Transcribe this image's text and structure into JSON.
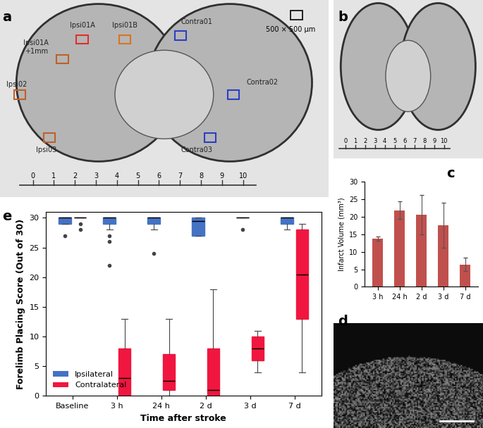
{
  "panel_labels": [
    "a",
    "b",
    "c",
    "d",
    "e"
  ],
  "images": {
    "a": {
      "regions": [
        {
          "label": "Ipsi01A",
          "color": "#e0302a"
        },
        {
          "label": "Ipsi01B",
          "color": "#d9751e"
        },
        {
          "label": "Ipsi01A\n+1mm",
          "color": "#c0602a"
        },
        {
          "label": "Ipsi02",
          "color": "#c0602a"
        },
        {
          "label": "Ipsi03",
          "color": "#c0602a"
        },
        {
          "label": "Contra01",
          "color": "#2b3fc4"
        },
        {
          "label": "Contra02",
          "color": "#2b3fc4"
        },
        {
          "label": "Contra03",
          "color": "#2b3fc4"
        }
      ],
      "scale_label": "500 × 500 μm",
      "ruler_ticks": [
        0,
        1,
        2,
        3,
        4,
        5,
        6,
        7,
        8,
        9,
        10
      ]
    },
    "b": {
      "ruler_ticks": [
        0,
        1,
        2,
        3,
        4,
        5,
        6,
        7,
        8,
        9,
        10
      ]
    }
  },
  "chart_data": [
    {
      "type": "bar",
      "categories": [
        "3 h",
        "24 h",
        "2 d",
        "3 d",
        "7 d"
      ],
      "values": [
        13.8,
        21.9,
        20.6,
        17.6,
        6.4
      ],
      "errors": [
        0.6,
        2.5,
        5.7,
        6.4,
        1.9
      ],
      "color": "#c0504d",
      "y_label": "Infarct Volume (mm³)",
      "ylim": [
        0,
        30
      ],
      "yticks": [
        0,
        5,
        10,
        15,
        20,
        25,
        30
      ]
    },
    {
      "type": "box",
      "categories": [
        "Baseline",
        "3 h",
        "24 h",
        "2 d",
        "3 d",
        "7 d"
      ],
      "x_label": "Time after stroke",
      "y_label": "Forelimb Placing Score (Out of 30)",
      "ylim": [
        0,
        31
      ],
      "yticks": [
        0,
        5,
        10,
        15,
        20,
        25,
        30
      ],
      "legend": "lower left",
      "series": [
        {
          "name": "Ipsilateral",
          "color": "#4472c4",
          "stats": [
            {
              "whislo": 29,
              "q1": 29,
              "med": 30,
              "q3": 30,
              "whishi": 30,
              "fliers": [
                27
              ]
            },
            {
              "whislo": 28,
              "q1": 29,
              "med": 30,
              "q3": 30,
              "whishi": 30,
              "fliers": [
                27,
                26,
                22
              ]
            },
            {
              "whislo": 28,
              "q1": 29,
              "med": 30,
              "q3": 30,
              "whishi": 30,
              "fliers": [
                24
              ]
            },
            {
              "whislo": 27,
              "q1": 27,
              "med": 29.5,
              "q3": 30,
              "whishi": 30,
              "fliers": []
            },
            {
              "whislo": 30,
              "q1": 30,
              "med": 30,
              "q3": 30,
              "whishi": 30,
              "fliers": [
                28
              ]
            },
            {
              "whislo": 28,
              "q1": 29,
              "med": 30,
              "q3": 30,
              "whishi": 30,
              "fliers": []
            }
          ]
        },
        {
          "name": "Contralateral",
          "color": "#f0163f",
          "stats": [
            {
              "whislo": 30,
              "q1": 30,
              "med": 30,
              "q3": 30,
              "whishi": 30,
              "fliers": [
                29,
                28
              ]
            },
            {
              "whislo": 0,
              "q1": 0,
              "med": 3,
              "q3": 8,
              "whishi": 13,
              "fliers": []
            },
            {
              "whislo": 0,
              "q1": 1,
              "med": 2.5,
              "q3": 7,
              "whishi": 13,
              "fliers": []
            },
            {
              "whislo": 0,
              "q1": 0,
              "med": 1,
              "q3": 8,
              "whishi": 18,
              "fliers": []
            },
            {
              "whislo": 4,
              "q1": 6,
              "med": 8,
              "q3": 10,
              "whishi": 11,
              "fliers": []
            },
            {
              "whislo": 4,
              "q1": 13,
              "med": 20.5,
              "q3": 28,
              "whishi": 29,
              "fliers": []
            }
          ]
        }
      ]
    }
  ]
}
